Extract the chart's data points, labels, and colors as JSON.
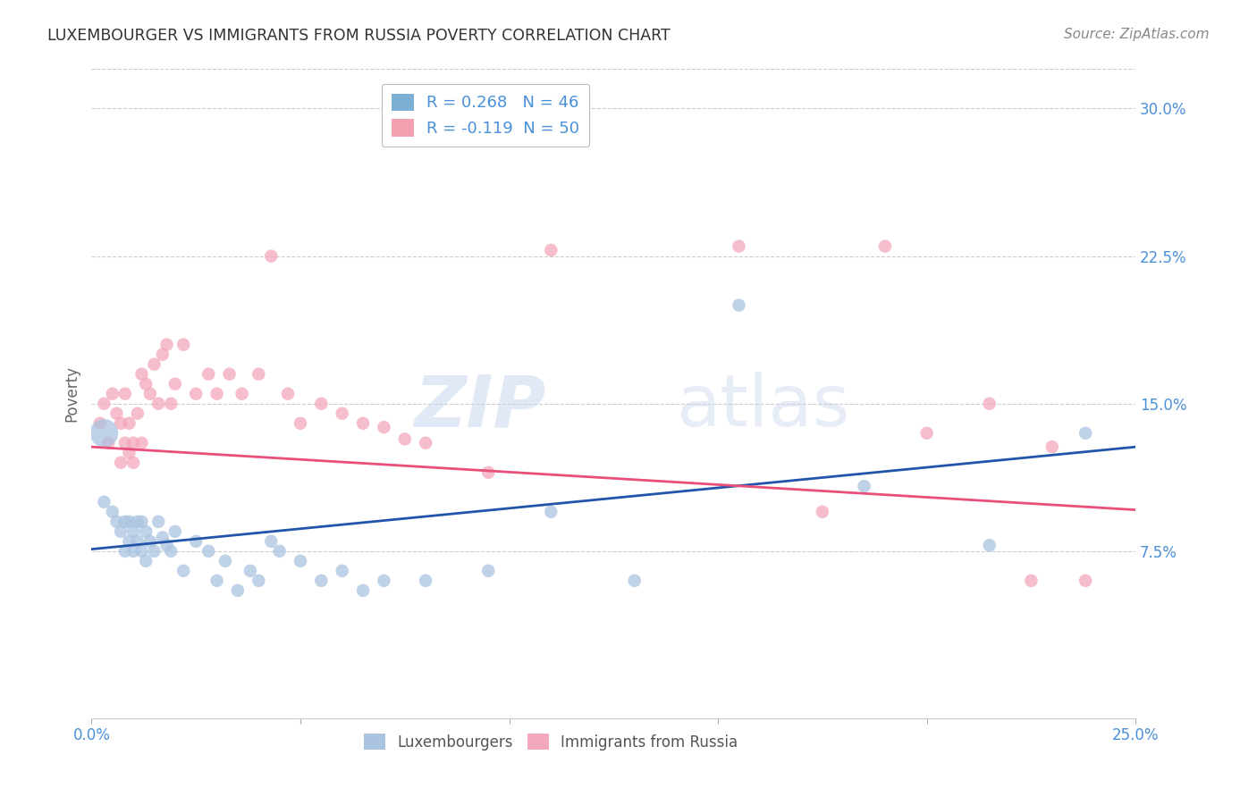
{
  "title": "LUXEMBOURGER VS IMMIGRANTS FROM RUSSIA POVERTY CORRELATION CHART",
  "source": "Source: ZipAtlas.com",
  "ylabel": "Poverty",
  "yticks": [
    0.075,
    0.15,
    0.225,
    0.3
  ],
  "ytick_labels": [
    "7.5%",
    "15.0%",
    "22.5%",
    "30.0%"
  ],
  "xmin": 0.0,
  "xmax": 0.25,
  "ymin": -0.01,
  "ymax": 0.32,
  "blue_R": 0.268,
  "blue_N": 46,
  "pink_R": -0.119,
  "pink_N": 50,
  "blue_color": "#aac4e0",
  "pink_color": "#f4a8bc",
  "blue_line_color": "#2255aa",
  "pink_line_color": "#e8507a",
  "blue_legend_color": "#7bafd4",
  "pink_legend_color": "#f4a0b0",
  "blue_line_y0": 0.076,
  "blue_line_y1": 0.128,
  "pink_line_y0": 0.128,
  "pink_line_y1": 0.096,
  "blue_points_x": [
    0.003,
    0.005,
    0.006,
    0.007,
    0.008,
    0.008,
    0.009,
    0.009,
    0.01,
    0.01,
    0.011,
    0.011,
    0.012,
    0.012,
    0.013,
    0.013,
    0.014,
    0.015,
    0.016,
    0.017,
    0.018,
    0.019,
    0.02,
    0.022,
    0.025,
    0.028,
    0.03,
    0.032,
    0.035,
    0.038,
    0.04,
    0.043,
    0.045,
    0.05,
    0.055,
    0.06,
    0.065,
    0.07,
    0.08,
    0.095,
    0.11,
    0.13,
    0.155,
    0.185,
    0.215,
    0.238
  ],
  "blue_points_y": [
    0.1,
    0.095,
    0.09,
    0.085,
    0.09,
    0.075,
    0.09,
    0.08,
    0.085,
    0.075,
    0.08,
    0.09,
    0.075,
    0.09,
    0.085,
    0.07,
    0.08,
    0.075,
    0.09,
    0.082,
    0.078,
    0.075,
    0.085,
    0.065,
    0.08,
    0.075,
    0.06,
    0.07,
    0.055,
    0.065,
    0.06,
    0.08,
    0.075,
    0.07,
    0.06,
    0.065,
    0.055,
    0.06,
    0.06,
    0.065,
    0.095,
    0.06,
    0.2,
    0.108,
    0.078,
    0.135
  ],
  "blue_large_x": [
    0.003
  ],
  "blue_large_y": [
    0.135
  ],
  "pink_points_x": [
    0.002,
    0.003,
    0.004,
    0.005,
    0.006,
    0.007,
    0.007,
    0.008,
    0.008,
    0.009,
    0.009,
    0.01,
    0.01,
    0.011,
    0.012,
    0.012,
    0.013,
    0.014,
    0.015,
    0.016,
    0.017,
    0.018,
    0.019,
    0.02,
    0.022,
    0.025,
    0.028,
    0.03,
    0.033,
    0.036,
    0.04,
    0.043,
    0.047,
    0.05,
    0.055,
    0.06,
    0.065,
    0.07,
    0.075,
    0.08,
    0.095,
    0.11,
    0.155,
    0.175,
    0.19,
    0.2,
    0.215,
    0.225,
    0.23,
    0.238
  ],
  "pink_points_y": [
    0.14,
    0.15,
    0.13,
    0.155,
    0.145,
    0.12,
    0.14,
    0.13,
    0.155,
    0.125,
    0.14,
    0.13,
    0.12,
    0.145,
    0.165,
    0.13,
    0.16,
    0.155,
    0.17,
    0.15,
    0.175,
    0.18,
    0.15,
    0.16,
    0.18,
    0.155,
    0.165,
    0.155,
    0.165,
    0.155,
    0.165,
    0.225,
    0.155,
    0.14,
    0.15,
    0.145,
    0.14,
    0.138,
    0.132,
    0.13,
    0.115,
    0.228,
    0.23,
    0.095,
    0.23,
    0.135,
    0.15,
    0.06,
    0.128,
    0.06
  ],
  "watermark_zip": "ZIP",
  "watermark_atlas": "atlas"
}
